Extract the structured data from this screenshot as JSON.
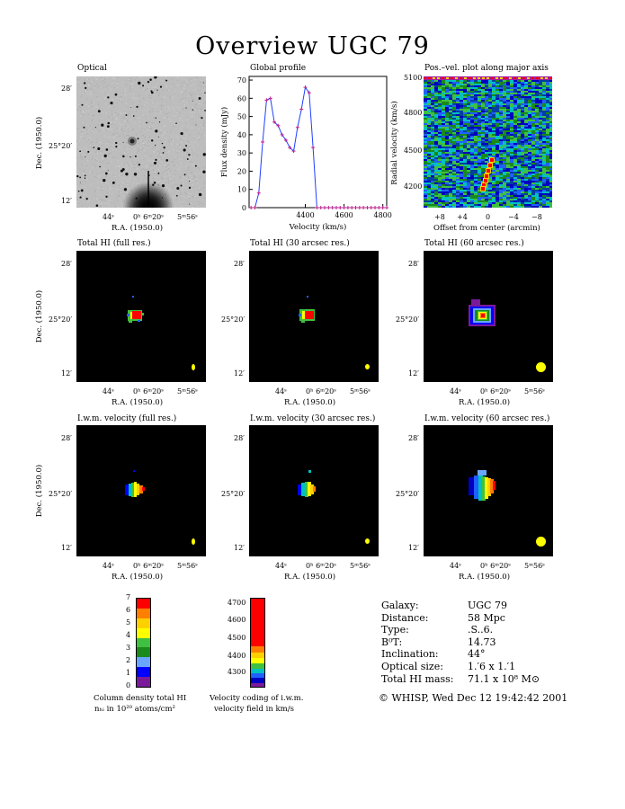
{
  "title": "Overview UGC 79",
  "panels": {
    "optical": "Optical",
    "global_profile": "Global profile",
    "pv": "Pos.–vel. plot along major axis",
    "hi_full": "Total HI (full res.)",
    "hi_30": "Total HI (30 arcsec res.)",
    "hi_60": "Total HI (60 arcsec res.)",
    "iwm_full": "I.w.m. velocity (full res.)",
    "iwm_30": "I.w.m. velocity (30 arcsec res.)",
    "iwm_60": "I.w.m. velocity (60 arcsec res.)"
  },
  "axes": {
    "ra_label": "R.A. (1950.0)",
    "dec_label": "Dec. (1950.0)",
    "dec_ticks": [
      "28′",
      "25°20′",
      "12′"
    ],
    "ra_ticks": [
      "44ˢ",
      "0ʰ 6ᵐ20ˢ",
      "5ᵐ56ˢ"
    ],
    "flux_label": "Flux density (mJy)",
    "velocity_label": "Velocity (km/s)",
    "radial_velocity_label": "Radial velocity (km/s)",
    "offset_label": "Offset from center (arcmin)",
    "pv_y_ticks": [
      "5100",
      "4800",
      "4500",
      "4200"
    ],
    "pv_x_ticks": [
      "+8",
      "+4",
      "0",
      "−4",
      "−8"
    ]
  },
  "chart_data": {
    "type": "line",
    "title": "Global profile",
    "xlabel": "Velocity (km/s)",
    "ylabel": "Flux density (mJy)",
    "xlim": [
      4110,
      4820
    ],
    "ylim": [
      0,
      72
    ],
    "x_ticks": [
      4400,
      4600,
      4800
    ],
    "y_ticks": [
      0,
      10,
      20,
      30,
      40,
      50,
      60,
      70
    ],
    "x": [
      4120,
      4140,
      4160,
      4180,
      4200,
      4220,
      4240,
      4260,
      4280,
      4300,
      4320,
      4340,
      4360,
      4380,
      4400,
      4420,
      4440,
      4460,
      4480,
      4500,
      4520,
      4540,
      4560,
      4580,
      4600,
      4620,
      4640,
      4660,
      4680,
      4700,
      4720,
      4740,
      4760,
      4780,
      4800,
      4820
    ],
    "values": [
      0,
      0,
      8,
      36,
      59,
      60,
      47,
      45,
      40,
      37,
      33,
      31,
      44,
      54,
      66,
      63,
      33,
      0,
      0,
      0,
      0,
      0,
      0,
      0,
      0,
      0,
      0,
      0,
      0,
      0,
      0,
      0,
      0,
      0,
      0,
      0
    ]
  },
  "colorbar_density": {
    "caption_line1": "Column density total HI",
    "caption_line2": "nₕᵢ in 10²⁰ atoms/cm²",
    "ticks": [
      "7",
      "6",
      "5",
      "4",
      "3",
      "2",
      "1",
      "0"
    ],
    "colors": [
      "#ff0000",
      "#ff8000",
      "#ffd000",
      "#ffff00",
      "#40c040",
      "#1a8a1a",
      "#6aa6ff",
      "#0000ff",
      "#7a1a9a"
    ]
  },
  "colorbar_velocity": {
    "caption_line1": "Velocity coding of i.w.m.",
    "caption_line2": "velocity field in km/s",
    "ticks": [
      "4700",
      "4600",
      "4500",
      "4400",
      "4300"
    ],
    "colors": [
      "#ff0000",
      "#ff8000",
      "#ffd000",
      "#ffff00",
      "#40c040",
      "#00c0c0",
      "#2060ff",
      "#0000c0",
      "#7a1a9a"
    ]
  },
  "info": {
    "galaxy_k": "Galaxy:",
    "galaxy_v": "UGC 79",
    "distance_k": "Distance:",
    "distance_v": "58 Mpc",
    "type_k": "Type:",
    "type_v": ".S..6.",
    "bt_k": "B⁰T:",
    "bt_v": "14.73",
    "incl_k": "Inclination:",
    "incl_v": "44°",
    "opt_k": "Optical size:",
    "opt_v": "1.′6 x 1.′1",
    "mass_k": "Total HI mass:",
    "mass_v": "71.1 x 10⁸ M⊙",
    "footer": "© WHISP, Wed Dec 12 19:42:42 2001"
  }
}
